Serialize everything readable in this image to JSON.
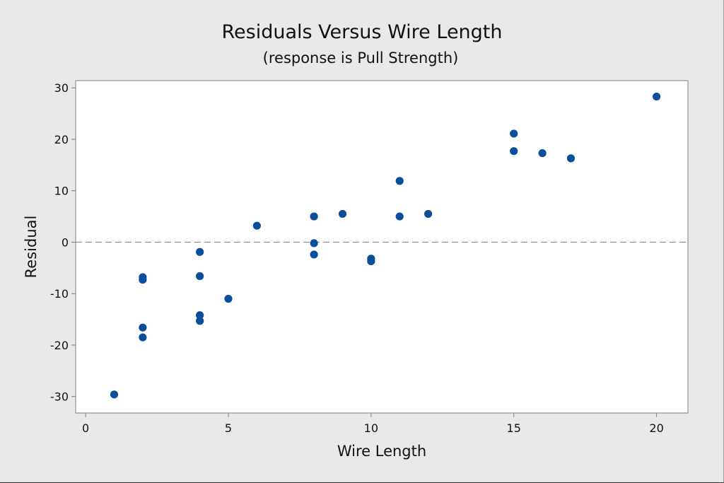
{
  "chart_data": {
    "type": "scatter",
    "title": "Residuals Versus Wire Length",
    "subtitle": "(response is Pull Strength)",
    "xlabel": "Wire Length",
    "ylabel": "Residual",
    "xlim": [
      -0.35,
      21.1
    ],
    "ylim": [
      -33.2,
      31.4
    ],
    "x_ticks": [
      0,
      5,
      10,
      15,
      20
    ],
    "y_ticks": [
      -30,
      -20,
      -10,
      0,
      10,
      20,
      30
    ],
    "x_tick_labels": [
      "0",
      "5",
      "10",
      "15",
      "20"
    ],
    "y_tick_labels": [
      "-30",
      "-20",
      "-10",
      "0",
      "10",
      "20",
      "30"
    ],
    "reference_line": {
      "y": 0,
      "style": "dashed"
    },
    "grid": false,
    "marker_color": "#0b4f9c",
    "points": [
      {
        "x": 1,
        "y": -29.6
      },
      {
        "x": 2,
        "y": -6.8
      },
      {
        "x": 2,
        "y": -7.3
      },
      {
        "x": 2,
        "y": -16.6
      },
      {
        "x": 2,
        "y": -18.5
      },
      {
        "x": 4,
        "y": -1.9
      },
      {
        "x": 4,
        "y": -6.6
      },
      {
        "x": 4,
        "y": -14.2
      },
      {
        "x": 4,
        "y": -15.3
      },
      {
        "x": 5,
        "y": -11.0
      },
      {
        "x": 6,
        "y": 3.2
      },
      {
        "x": 8,
        "y": 5.0
      },
      {
        "x": 8,
        "y": -0.2
      },
      {
        "x": 8,
        "y": -2.4
      },
      {
        "x": 9,
        "y": 5.5
      },
      {
        "x": 10,
        "y": -3.2
      },
      {
        "x": 10,
        "y": -3.7
      },
      {
        "x": 11,
        "y": 11.9
      },
      {
        "x": 11,
        "y": 5.0
      },
      {
        "x": 12,
        "y": 5.5
      },
      {
        "x": 15,
        "y": 21.1
      },
      {
        "x": 15,
        "y": 17.7
      },
      {
        "x": 16,
        "y": 17.3
      },
      {
        "x": 17,
        "y": 16.3
      },
      {
        "x": 20,
        "y": 28.3
      }
    ]
  },
  "colors": {
    "background": "#e9e9e9",
    "plot_area": "#ffffff",
    "axis": "#7f7f7f",
    "reference_line": "#8c8c8c",
    "marker": "#0b4f9c"
  }
}
